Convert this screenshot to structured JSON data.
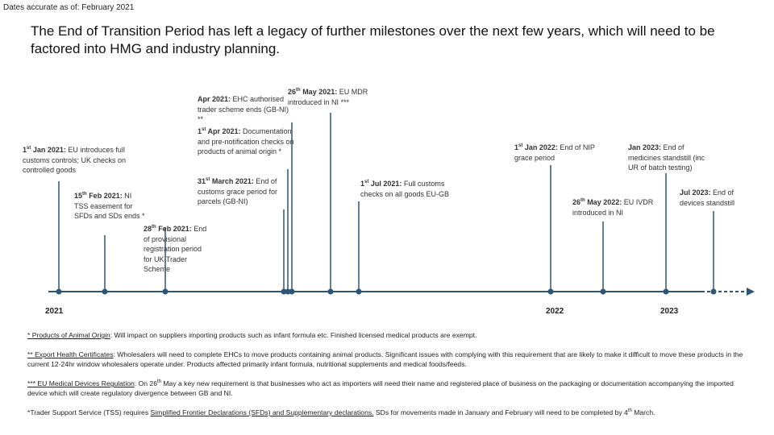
{
  "header": {
    "note": "Dates accurate as of: February 2021",
    "title": "The End of Transition Period has left a legacy of further milestones over the next few years, which will need to be factored into HMG and industry planning."
  },
  "years": [
    "2021",
    "2022",
    "2023"
  ],
  "events": [
    {
      "date": "1",
      "sup": "st",
      "date_end": " Jan 2021:",
      "text": " EU introduces full customs controls; UK checks on controlled goods"
    },
    {
      "date": "15",
      "sup": "th",
      "date_end": " Feb 2021:",
      "text": " NI TSS easement for SFDs and SDs ends *"
    },
    {
      "date": "28",
      "sup": "th",
      "date_end": " Feb 2021:",
      "text": " End of provisional registration period for UK Trader Scheme"
    },
    {
      "date": "31",
      "sup": "st",
      "date_end": " March 2021:",
      "text": " End of customs grace period for parcels (GB-NI)"
    },
    {
      "date": "1",
      "sup": "st",
      "date_end": " Apr 2021:",
      "text": " Documentation and pre-notification checks on products of animal origin *"
    },
    {
      "date": "Apr 2021:",
      "text": " EHC authorised trader scheme ends (GB-NI) **"
    },
    {
      "date": "26",
      "sup": "th",
      "date_end": " May 2021:",
      "text": " EU MDR introduced in NI ***"
    },
    {
      "date": "1",
      "sup": "st",
      "date_end": " Jul 2021:",
      "text": " Full customs checks on all goods EU-GB"
    },
    {
      "date": "1",
      "sup": "st",
      "date_end": " Jan 2022:",
      "text": " End of NIP grace period"
    },
    {
      "date": "Jan 2023:",
      "text": " End of medicines standstill (inc UR of batch testing)"
    },
    {
      "date": "26",
      "sup": "th",
      "date_end": " May 2022:",
      "text": " EU IVDR introduced in NI"
    },
    {
      "date": "Jul 2023:",
      "text": " End of devices standstill"
    }
  ],
  "footnotes": [
    [
      {
        "text": "* Products of Animal Origin",
        "underline": true
      },
      {
        "text": ": Will impact on suppliers importing products such as infant formula etc. Finished licensed medical products are exempt."
      }
    ],
    [
      {
        "text": "** Export Health Certificates",
        "underline": true
      },
      {
        "text": ": Wholesalers will need to complete EHCs to move products containing animal products. Significant issues with complying with this requirement that are likely to make it difficult to move these products in the current 12-24hr window wholesalers operate under. Products affected primarily infant formula, nutritional supplements and medical foods/feeds."
      }
    ],
    [
      {
        "text": "*** EU Medical Devices Regulation",
        "underline": true
      },
      {
        "text": ": On 26"
      },
      {
        "text": "th",
        "sup": true
      },
      {
        "text": " May a key new requirement is that businesses who act as importers will need their name and registered place of business on the packaging or documentation accompanying the imported device which will create regulatory divergence between GB and NI."
      }
    ],
    [
      {
        "text": "*Trader Support Service (TSS) requires "
      },
      {
        "text": "Simplified Frontier Declarations (SFDs) and Supplementary declarations.",
        "underline": true
      },
      {
        "text": " SDs for movements made in January and February will need to be completed by 4"
      },
      {
        "text": "th",
        "sup": true
      },
      {
        "text": " March."
      }
    ]
  ]
}
